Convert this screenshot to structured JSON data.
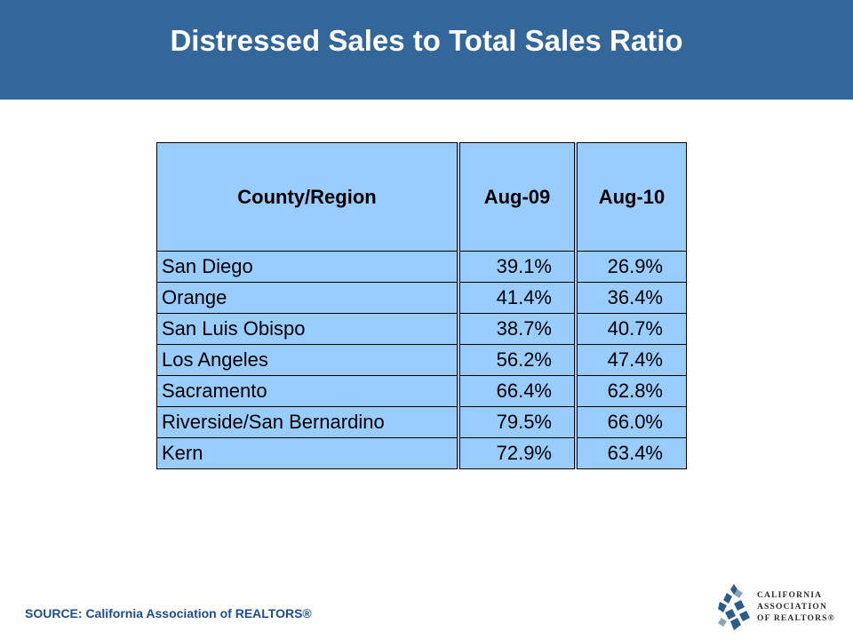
{
  "header": {
    "title": "Distressed Sales to Total Sales Ratio"
  },
  "table": {
    "columns": [
      "County/Region",
      "Aug-09",
      "Aug-10"
    ],
    "rows": [
      {
        "region": "San Diego",
        "aug09": "39.1%",
        "aug10": "26.9%"
      },
      {
        "region": "Orange",
        "aug09": "41.4%",
        "aug10": "36.4%"
      },
      {
        "region": "San Luis Obispo",
        "aug09": "38.7%",
        "aug10": "40.7%"
      },
      {
        "region": "Los Angeles",
        "aug09": "56.2%",
        "aug10": "47.4%"
      },
      {
        "region": "Sacramento",
        "aug09": "66.4%",
        "aug10": "62.8%"
      },
      {
        "region": "Riverside/San Bernardino",
        "aug09": "79.5%",
        "aug10": "66.0%"
      },
      {
        "region": "Kern",
        "aug09": "72.9%",
        "aug10": "63.4%"
      }
    ]
  },
  "footer": {
    "source": "SOURCE: California Association of REALTORS®",
    "logo_lines": [
      "CALIFORNIA",
      "ASSOCIATION",
      "OF REALTORS®"
    ]
  },
  "colors": {
    "header_bg": "#336699",
    "table_bg": "#99ccff",
    "source_text": "#1f4e8c"
  }
}
